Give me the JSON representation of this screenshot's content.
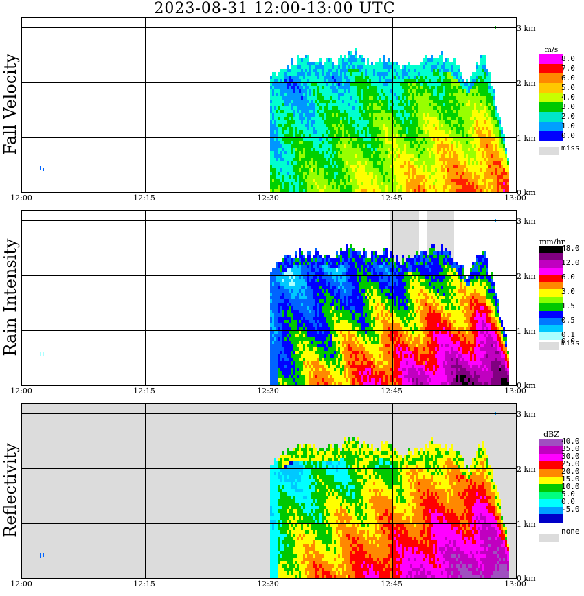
{
  "title": "2023-08-31   12:00-13:00 UTC",
  "x_ticks": [
    "12:00",
    "12:15",
    "12:30",
    "12:45",
    "13:00"
  ],
  "y_ticks": [
    "0 km",
    "1 km",
    "2 km",
    "3 km"
  ],
  "panels": [
    {
      "name": "Fall Velocity",
      "unit": "m/s",
      "colors": [
        "#ff00ff",
        "#ff0000",
        "#ff8800",
        "#ffc800",
        "#c8ff00",
        "#00c800",
        "#00e6c8",
        "#00a0ff",
        "#0000ff"
      ],
      "legend": [
        "8.0",
        "7.0",
        "6.0",
        "5.0",
        "4.0",
        "3.0",
        "2.0",
        "1.0",
        "0.0"
      ],
      "missing_label": "miss",
      "palette": [
        "#0010ff",
        "#0096ff",
        "#00ffd0",
        "#00d000",
        "#98ff00",
        "#ffff00",
        "#ffa000",
        "#ff2000",
        "#ff00ff"
      ]
    },
    {
      "name": "Rain Intensity",
      "unit": "mm/hr",
      "colors": [
        "#000000",
        "#800080",
        "#c000c0",
        "#ff00ff",
        "#ff0000",
        "#ff8800",
        "#ffff00",
        "#88ff00",
        "#00c800",
        "#0000ff",
        "#0078ff",
        "#00c8ff",
        "#aaffff"
      ],
      "legend": [
        "48.0",
        "12.0",
        "6.0",
        "3.0",
        "1.5",
        "0.5",
        "0.1",
        "0.0"
      ],
      "missing_label": "miss",
      "palette": [
        "#aaffff",
        "#00c8ff",
        "#0064ff",
        "#0000ff",
        "#00c800",
        "#ffff00",
        "#ff8800",
        "#ff0000",
        "#ff00ff",
        "#c000c0",
        "#800080",
        "#000000"
      ]
    },
    {
      "name": "Reflectivity",
      "unit": "dBZ",
      "colors": [
        "#a050c0",
        "#c000c0",
        "#ff00ff",
        "#ff0000",
        "#ff8800",
        "#ffff00",
        "#00c800",
        "#00ff80",
        "#00ffff",
        "#00a0ff",
        "#0000c8"
      ],
      "legend": [
        "40.0",
        "35.0",
        "30.0",
        "25.0",
        "20.0",
        "15.0",
        "10.0",
        "5.0",
        "0.0",
        "-5.0"
      ],
      "missing_label": "none",
      "palette": [
        "#0000c8",
        "#00c8ff",
        "#00ffff",
        "#00c800",
        "#ffff00",
        "#ff8800",
        "#ff0000",
        "#ff00ff",
        "#c000c0",
        "#a050c0"
      ]
    }
  ],
  "chart_data": {
    "type": "heatmap",
    "title": "2023-08-31   12:00-13:00 UTC",
    "x_range": [
      "12:00",
      "13:00"
    ],
    "y_range_km": [
      0,
      3.25
    ],
    "grid": true,
    "echo_top_km": [
      {
        "time": "12:30",
        "top": 2.05
      },
      {
        "time": "12:33",
        "top": 2.35
      },
      {
        "time": "12:36",
        "top": 2.35
      },
      {
        "time": "12:38",
        "top": 2.3
      },
      {
        "time": "12:40",
        "top": 2.5
      },
      {
        "time": "12:42",
        "top": 2.3
      },
      {
        "time": "12:44",
        "top": 2.4
      },
      {
        "time": "12:46",
        "top": 2.2
      },
      {
        "time": "12:48",
        "top": 2.3
      },
      {
        "time": "12:50",
        "top": 2.45
      },
      {
        "time": "12:52",
        "top": 2.35
      },
      {
        "time": "12:54",
        "top": 1.95
      },
      {
        "time": "12:56",
        "top": 2.45
      },
      {
        "time": "12:58",
        "top": 1.25
      },
      {
        "time": "12:59",
        "top": 0.55
      }
    ]
  }
}
